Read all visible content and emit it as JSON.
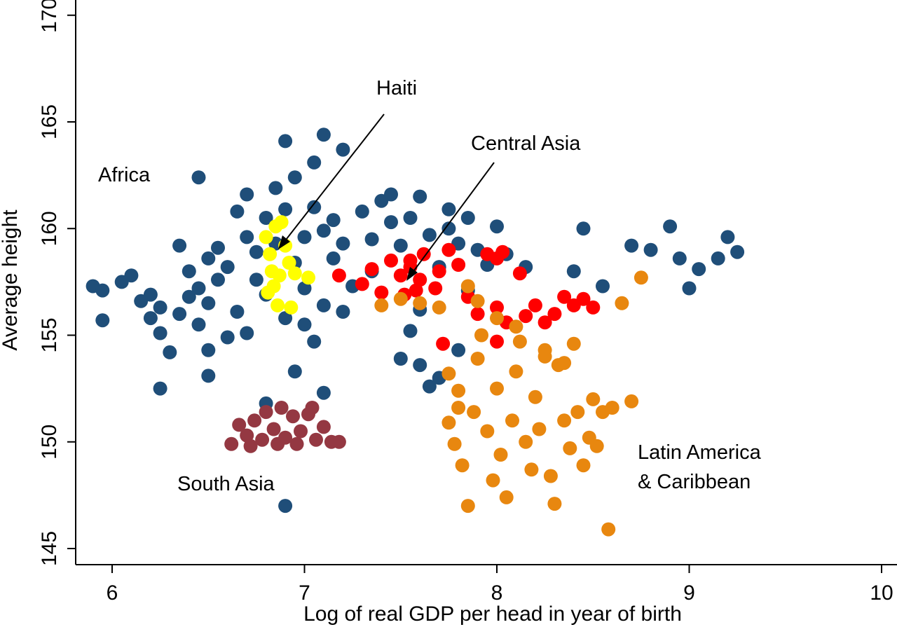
{
  "chart_data": {
    "type": "scatter",
    "title": "",
    "xlabel": "Log of real GDP per head in year of birth",
    "ylabel": "Average height",
    "xlim": [
      5.85,
      10.05
    ],
    "ylim": [
      144,
      170.5
    ],
    "xticks": [
      6,
      7,
      8,
      9,
      10
    ],
    "yticks": [
      145,
      150,
      155,
      160,
      165,
      170
    ],
    "xtick_labels": [
      "6",
      "7",
      "8",
      "9",
      "10"
    ],
    "ytick_labels": [
      "145",
      "150",
      "155",
      "160",
      "165",
      "170"
    ],
    "grid": false,
    "series": [
      {
        "name": "Africa",
        "color": "#1f4e79",
        "points": [
          [
            5.9,
            157.3
          ],
          [
            5.95,
            157.1
          ],
          [
            5.95,
            155.7
          ],
          [
            6.05,
            157.5
          ],
          [
            6.1,
            157.8
          ],
          [
            6.15,
            156.6
          ],
          [
            6.2,
            156.9
          ],
          [
            6.2,
            155.8
          ],
          [
            6.25,
            156.3
          ],
          [
            6.25,
            155.1
          ],
          [
            6.3,
            154.2
          ],
          [
            6.35,
            156.0
          ],
          [
            6.4,
            156.8
          ],
          [
            6.4,
            158.0
          ],
          [
            6.45,
            157.2
          ],
          [
            6.45,
            155.5
          ],
          [
            6.5,
            156.5
          ],
          [
            6.5,
            158.6
          ],
          [
            6.55,
            157.6
          ],
          [
            6.55,
            159.1
          ],
          [
            6.6,
            158.2
          ],
          [
            6.6,
            154.9
          ],
          [
            6.65,
            156.1
          ],
          [
            6.65,
            160.8
          ],
          [
            6.7,
            161.6
          ],
          [
            6.7,
            159.6
          ],
          [
            6.75,
            158.9
          ],
          [
            6.75,
            157.6
          ],
          [
            6.8,
            156.9
          ],
          [
            6.8,
            160.5
          ],
          [
            6.85,
            161.9
          ],
          [
            6.85,
            159.3
          ],
          [
            6.9,
            160.9
          ],
          [
            6.95,
            162.4
          ],
          [
            6.95,
            158.4
          ],
          [
            7.0,
            159.6
          ],
          [
            7.0,
            157.2
          ],
          [
            7.05,
            163.1
          ],
          [
            7.05,
            161.0
          ],
          [
            7.1,
            159.9
          ],
          [
            7.1,
            156.4
          ],
          [
            7.15,
            158.6
          ],
          [
            7.15,
            160.4
          ],
          [
            7.2,
            159.3
          ],
          [
            7.25,
            157.3
          ],
          [
            7.3,
            160.8
          ],
          [
            7.35,
            159.5
          ],
          [
            7.35,
            158.0
          ],
          [
            7.4,
            161.3
          ],
          [
            7.45,
            160.3
          ],
          [
            7.5,
            159.2
          ],
          [
            7.55,
            160.5
          ],
          [
            7.55,
            155.2
          ],
          [
            7.6,
            156.2
          ],
          [
            7.65,
            159.7
          ],
          [
            7.7,
            158.2
          ],
          [
            7.7,
            153.0
          ],
          [
            7.75,
            160.0
          ],
          [
            7.8,
            159.3
          ],
          [
            7.85,
            160.5
          ],
          [
            7.85,
            157.1
          ],
          [
            7.9,
            159.0
          ],
          [
            7.95,
            158.3
          ],
          [
            8.0,
            160.1
          ],
          [
            8.05,
            158.8
          ],
          [
            8.15,
            158.2
          ],
          [
            8.4,
            158.0
          ],
          [
            8.45,
            160.0
          ],
          [
            8.55,
            157.3
          ],
          [
            8.7,
            159.2
          ],
          [
            8.8,
            159.0
          ],
          [
            8.9,
            160.1
          ],
          [
            8.95,
            158.6
          ],
          [
            9.0,
            157.2
          ],
          [
            9.05,
            158.1
          ],
          [
            9.15,
            158.6
          ],
          [
            9.2,
            159.6
          ],
          [
            9.25,
            158.9
          ],
          [
            6.9,
            147.0
          ],
          [
            6.8,
            151.8
          ],
          [
            6.95,
            153.3
          ],
          [
            7.1,
            152.3
          ],
          [
            6.7,
            155.1
          ],
          [
            6.5,
            154.3
          ],
          [
            6.25,
            152.5
          ],
          [
            6.9,
            164.1
          ],
          [
            7.1,
            164.4
          ],
          [
            7.2,
            163.7
          ],
          [
            6.45,
            162.4
          ],
          [
            6.35,
            159.2
          ],
          [
            6.9,
            155.8
          ],
          [
            7.05,
            154.7
          ],
          [
            7.2,
            156.1
          ],
          [
            7.0,
            155.5
          ],
          [
            7.6,
            153.6
          ],
          [
            7.65,
            152.6
          ],
          [
            7.5,
            153.9
          ],
          [
            6.5,
            153.1
          ],
          [
            7.8,
            154.3
          ],
          [
            7.45,
            161.6
          ],
          [
            7.6,
            161.5
          ],
          [
            7.75,
            160.9
          ]
        ]
      },
      {
        "name": "Haiti",
        "color": "#ffff00",
        "points": [
          [
            6.8,
            159.6
          ],
          [
            6.82,
            158.8
          ],
          [
            6.85,
            160.1
          ],
          [
            6.83,
            158.0
          ],
          [
            6.84,
            157.3
          ],
          [
            6.86,
            156.4
          ],
          [
            6.87,
            157.8
          ],
          [
            6.9,
            159.2
          ],
          [
            6.92,
            158.4
          ],
          [
            6.95,
            157.9
          ],
          [
            6.88,
            160.3
          ],
          [
            7.02,
            157.7
          ],
          [
            6.93,
            156.3
          ],
          [
            6.81,
            157.0
          ]
        ]
      },
      {
        "name": "Central Asia",
        "color": "#ff0000",
        "points": [
          [
            7.18,
            157.8
          ],
          [
            7.3,
            157.4
          ],
          [
            7.35,
            158.1
          ],
          [
            7.4,
            157.0
          ],
          [
            7.45,
            158.5
          ],
          [
            7.5,
            157.8
          ],
          [
            7.52,
            156.9
          ],
          [
            7.55,
            158.2
          ],
          [
            7.6,
            157.6
          ],
          [
            7.62,
            158.8
          ],
          [
            7.68,
            157.2
          ],
          [
            7.7,
            158.0
          ],
          [
            7.75,
            159.0
          ],
          [
            7.8,
            158.3
          ],
          [
            7.85,
            156.8
          ],
          [
            7.9,
            156.0
          ],
          [
            7.95,
            158.8
          ],
          [
            8.0,
            158.6
          ],
          [
            8.03,
            158.9
          ],
          [
            8.0,
            156.3
          ],
          [
            8.05,
            155.6
          ],
          [
            8.12,
            157.9
          ],
          [
            8.15,
            155.9
          ],
          [
            8.2,
            156.4
          ],
          [
            8.25,
            155.6
          ],
          [
            8.3,
            156.0
          ],
          [
            8.35,
            156.8
          ],
          [
            8.4,
            156.4
          ],
          [
            8.45,
            156.7
          ],
          [
            8.5,
            156.3
          ],
          [
            8.0,
            154.7
          ],
          [
            7.72,
            154.6
          ],
          [
            7.55,
            158.5
          ],
          [
            7.58,
            157.1
          ]
        ]
      },
      {
        "name": "South Asia",
        "color": "#943842",
        "points": [
          [
            6.62,
            149.9
          ],
          [
            6.66,
            150.8
          ],
          [
            6.7,
            150.3
          ],
          [
            6.74,
            151.0
          ],
          [
            6.78,
            150.1
          ],
          [
            6.8,
            151.4
          ],
          [
            6.84,
            150.6
          ],
          [
            6.88,
            151.6
          ],
          [
            6.9,
            150.2
          ],
          [
            6.94,
            151.2
          ],
          [
            6.98,
            150.5
          ],
          [
            7.02,
            151.3
          ],
          [
            7.06,
            150.1
          ],
          [
            7.1,
            150.7
          ],
          [
            7.14,
            150.0
          ],
          [
            7.18,
            150.0
          ],
          [
            6.86,
            149.9
          ],
          [
            6.96,
            149.9
          ],
          [
            6.72,
            149.8
          ],
          [
            7.04,
            151.6
          ]
        ]
      },
      {
        "name": "Latin America & Caribbean",
        "color": "#e8870f",
        "points": [
          [
            7.4,
            156.4
          ],
          [
            7.5,
            156.7
          ],
          [
            7.6,
            156.5
          ],
          [
            7.7,
            156.3
          ],
          [
            7.75,
            150.9
          ],
          [
            7.78,
            149.9
          ],
          [
            7.8,
            152.4
          ],
          [
            7.82,
            148.9
          ],
          [
            7.85,
            147.0
          ],
          [
            7.88,
            151.4
          ],
          [
            7.9,
            153.9
          ],
          [
            7.92,
            155.0
          ],
          [
            7.95,
            150.5
          ],
          [
            7.98,
            148.2
          ],
          [
            8.0,
            152.5
          ],
          [
            8.02,
            149.4
          ],
          [
            8.05,
            147.4
          ],
          [
            8.08,
            151.0
          ],
          [
            8.1,
            153.3
          ],
          [
            8.12,
            154.7
          ],
          [
            8.15,
            150.0
          ],
          [
            8.18,
            148.7
          ],
          [
            8.2,
            152.1
          ],
          [
            8.22,
            150.6
          ],
          [
            8.25,
            154.3
          ],
          [
            8.28,
            148.4
          ],
          [
            8.3,
            147.1
          ],
          [
            8.32,
            153.6
          ],
          [
            8.35,
            151.0
          ],
          [
            8.38,
            149.7
          ],
          [
            8.4,
            154.6
          ],
          [
            8.42,
            151.4
          ],
          [
            8.45,
            148.9
          ],
          [
            8.48,
            150.2
          ],
          [
            8.5,
            152.0
          ],
          [
            8.52,
            149.8
          ],
          [
            8.55,
            151.4
          ],
          [
            8.58,
            145.9
          ],
          [
            8.6,
            151.6
          ],
          [
            8.65,
            156.5
          ],
          [
            8.7,
            151.9
          ],
          [
            8.75,
            157.7
          ],
          [
            7.85,
            157.3
          ],
          [
            7.9,
            156.6
          ],
          [
            8.0,
            155.8
          ],
          [
            8.25,
            154.0
          ],
          [
            8.1,
            155.4
          ],
          [
            7.8,
            151.6
          ],
          [
            7.75,
            153.2
          ],
          [
            8.35,
            153.7
          ]
        ]
      }
    ],
    "annotations": [
      {
        "text": "Africa"
      },
      {
        "text": "South Asia"
      },
      {
        "text": "Haiti"
      },
      {
        "text": "Central Asia"
      },
      {
        "text": "Latin America"
      },
      {
        "text": "& Caribbean"
      }
    ]
  }
}
